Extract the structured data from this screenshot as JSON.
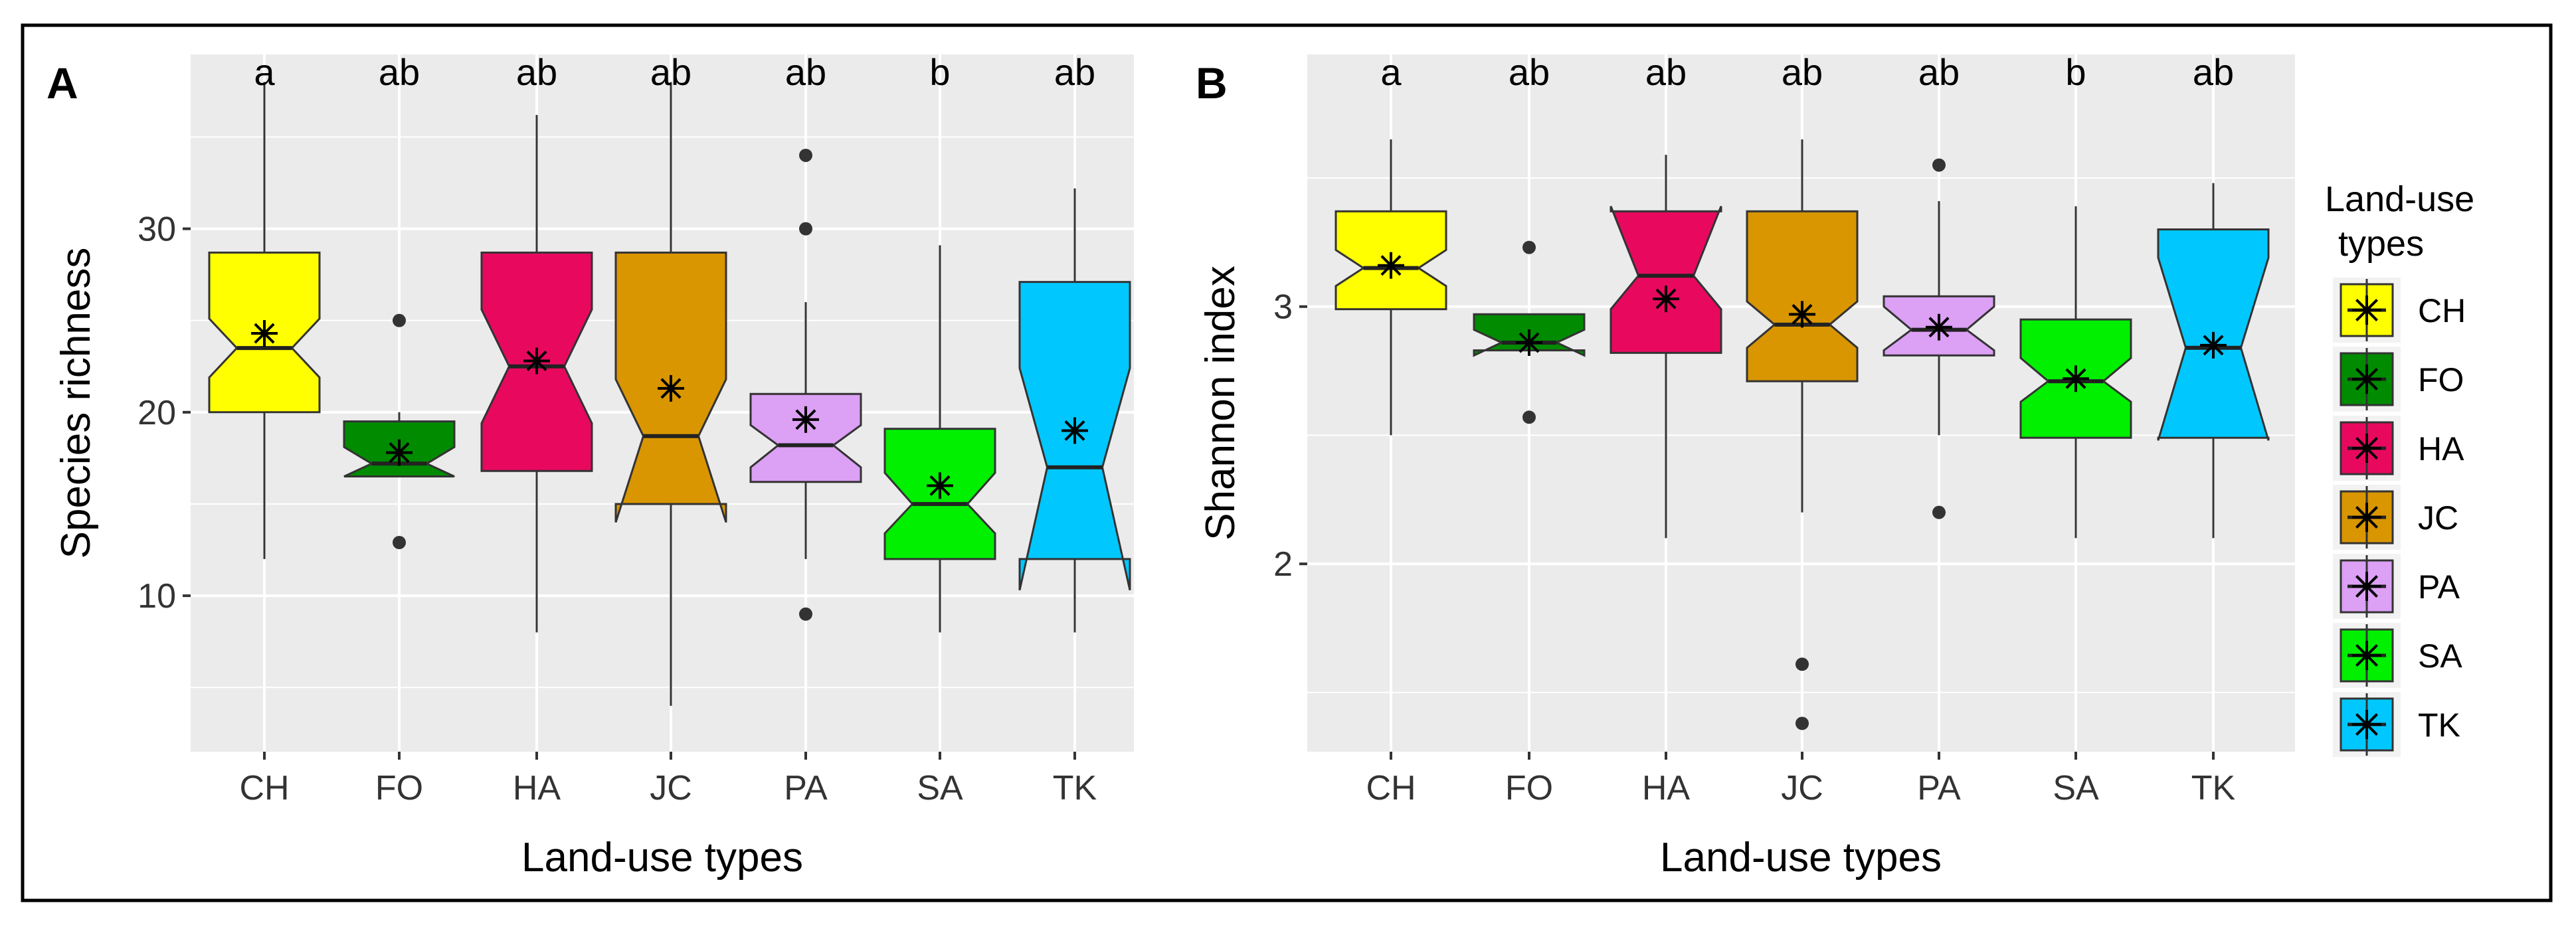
{
  "colors": {
    "CH": "#ffff00",
    "FO": "#008b00",
    "HA": "#e8095f",
    "JC": "#d99600",
    "PA": "#dca0f5",
    "SA": "#00f000",
    "TK": "#00c8ff"
  },
  "legend": {
    "title_line1": "Land-use",
    "title_line2": "types",
    "entries": [
      "CH",
      "FO",
      "HA",
      "JC",
      "PA",
      "SA",
      "TK"
    ]
  },
  "chart_data": [
    {
      "type": "boxplot",
      "panel_label": "A",
      "xlabel": "Land-use types",
      "ylabel": "Species richness",
      "ylim": [
        1.5,
        39.5
      ],
      "yticks": [
        10,
        20,
        30
      ],
      "categories": [
        "CH",
        "FO",
        "HA",
        "JC",
        "PA",
        "SA",
        "TK"
      ],
      "letters": [
        "a",
        "ab",
        "ab",
        "ab",
        "ab",
        "b",
        "ab"
      ],
      "boxes": [
        {
          "group": "CH",
          "whisker_low": 12,
          "q1": 20,
          "median": 23.5,
          "q3": 28.7,
          "whisker_high": 38,
          "notch_low": 21.9,
          "notch_high": 25.1,
          "mean": 24.3,
          "outliers": []
        },
        {
          "group": "FO",
          "whisker_low": 16.5,
          "q1": 16.5,
          "median": 17.2,
          "q3": 19.5,
          "whisker_high": 20,
          "notch_low": 16.5,
          "notch_high": 18.1,
          "mean": 17.8,
          "outliers": [
            12.9,
            25
          ]
        },
        {
          "group": "HA",
          "whisker_low": 8,
          "q1": 16.8,
          "median": 22.5,
          "q3": 28.7,
          "whisker_high": 36.2,
          "notch_low": 19.4,
          "notch_high": 25.6,
          "mean": 22.8,
          "outliers": []
        },
        {
          "group": "JC",
          "whisker_low": 4,
          "q1": 15,
          "median": 18.7,
          "q3": 28.7,
          "whisker_high": 38,
          "notch_low": 14.0,
          "notch_high": 21.8,
          "mean": 21.3,
          "outliers": []
        },
        {
          "group": "PA",
          "whisker_low": 12,
          "q1": 16.2,
          "median": 18.2,
          "q3": 21,
          "whisker_high": 26,
          "notch_low": 17.0,
          "notch_high": 19.3,
          "mean": 19.6,
          "outliers": [
            9,
            30,
            34
          ]
        },
        {
          "group": "SA",
          "whisker_low": 8,
          "q1": 12,
          "median": 15,
          "q3": 19.1,
          "whisker_high": 29.1,
          "notch_low": 13.4,
          "notch_high": 16.7,
          "mean": 16,
          "outliers": []
        },
        {
          "group": "TK",
          "whisker_low": 8,
          "q1": 12,
          "median": 17,
          "q3": 27.1,
          "whisker_high": 32.2,
          "notch_low": 10.3,
          "notch_high": 22.4,
          "mean": 19,
          "outliers": []
        }
      ]
    },
    {
      "type": "boxplot",
      "panel_label": "B",
      "xlabel": "Land-use types",
      "ylabel": "Shannon index",
      "ylim": [
        1.27,
        3.98
      ],
      "yticks": [
        2,
        3
      ],
      "categories": [
        "CH",
        "FO",
        "HA",
        "JC",
        "PA",
        "SA",
        "TK"
      ],
      "letters": [
        "a",
        "ab",
        "ab",
        "ab",
        "ab",
        "b",
        "ab"
      ],
      "boxes": [
        {
          "group": "CH",
          "whisker_low": 2.5,
          "q1": 2.99,
          "median": 3.15,
          "q3": 3.37,
          "whisker_high": 3.65,
          "notch_low": 3.08,
          "notch_high": 3.22,
          "mean": 3.16,
          "outliers": []
        },
        {
          "group": "FO",
          "whisker_low": 2.83,
          "q1": 2.83,
          "median": 2.86,
          "q3": 2.97,
          "whisker_high": 2.97,
          "notch_low": 2.81,
          "notch_high": 2.91,
          "mean": 2.86,
          "outliers": [
            2.57,
            3.23
          ]
        },
        {
          "group": "HA",
          "whisker_low": 2.1,
          "q1": 2.82,
          "median": 3.12,
          "q3": 3.37,
          "whisker_high": 3.59,
          "notch_low": 2.99,
          "notch_high": 3.39,
          "mean": 3.03,
          "outliers": []
        },
        {
          "group": "JC",
          "whisker_low": 2.2,
          "q1": 2.71,
          "median": 2.93,
          "q3": 3.37,
          "whisker_high": 3.65,
          "notch_low": 2.84,
          "notch_high": 3.02,
          "mean": 2.97,
          "outliers": [
            1.38,
            1.61
          ]
        },
        {
          "group": "PA",
          "whisker_low": 2.5,
          "q1": 2.81,
          "median": 2.91,
          "q3": 3.04,
          "whisker_high": 3.41,
          "notch_low": 2.83,
          "notch_high": 3.0,
          "mean": 2.92,
          "outliers": [
            2.2,
            3.55
          ]
        },
        {
          "group": "SA",
          "whisker_low": 2.1,
          "q1": 2.49,
          "median": 2.71,
          "q3": 2.95,
          "whisker_high": 3.39,
          "notch_low": 2.63,
          "notch_high": 2.8,
          "mean": 2.72,
          "outliers": []
        },
        {
          "group": "TK",
          "whisker_low": 2.1,
          "q1": 2.49,
          "median": 2.84,
          "q3": 3.3,
          "whisker_high": 3.48,
          "notch_low": 2.48,
          "notch_high": 3.19,
          "mean": 2.85,
          "outliers": []
        }
      ]
    }
  ]
}
